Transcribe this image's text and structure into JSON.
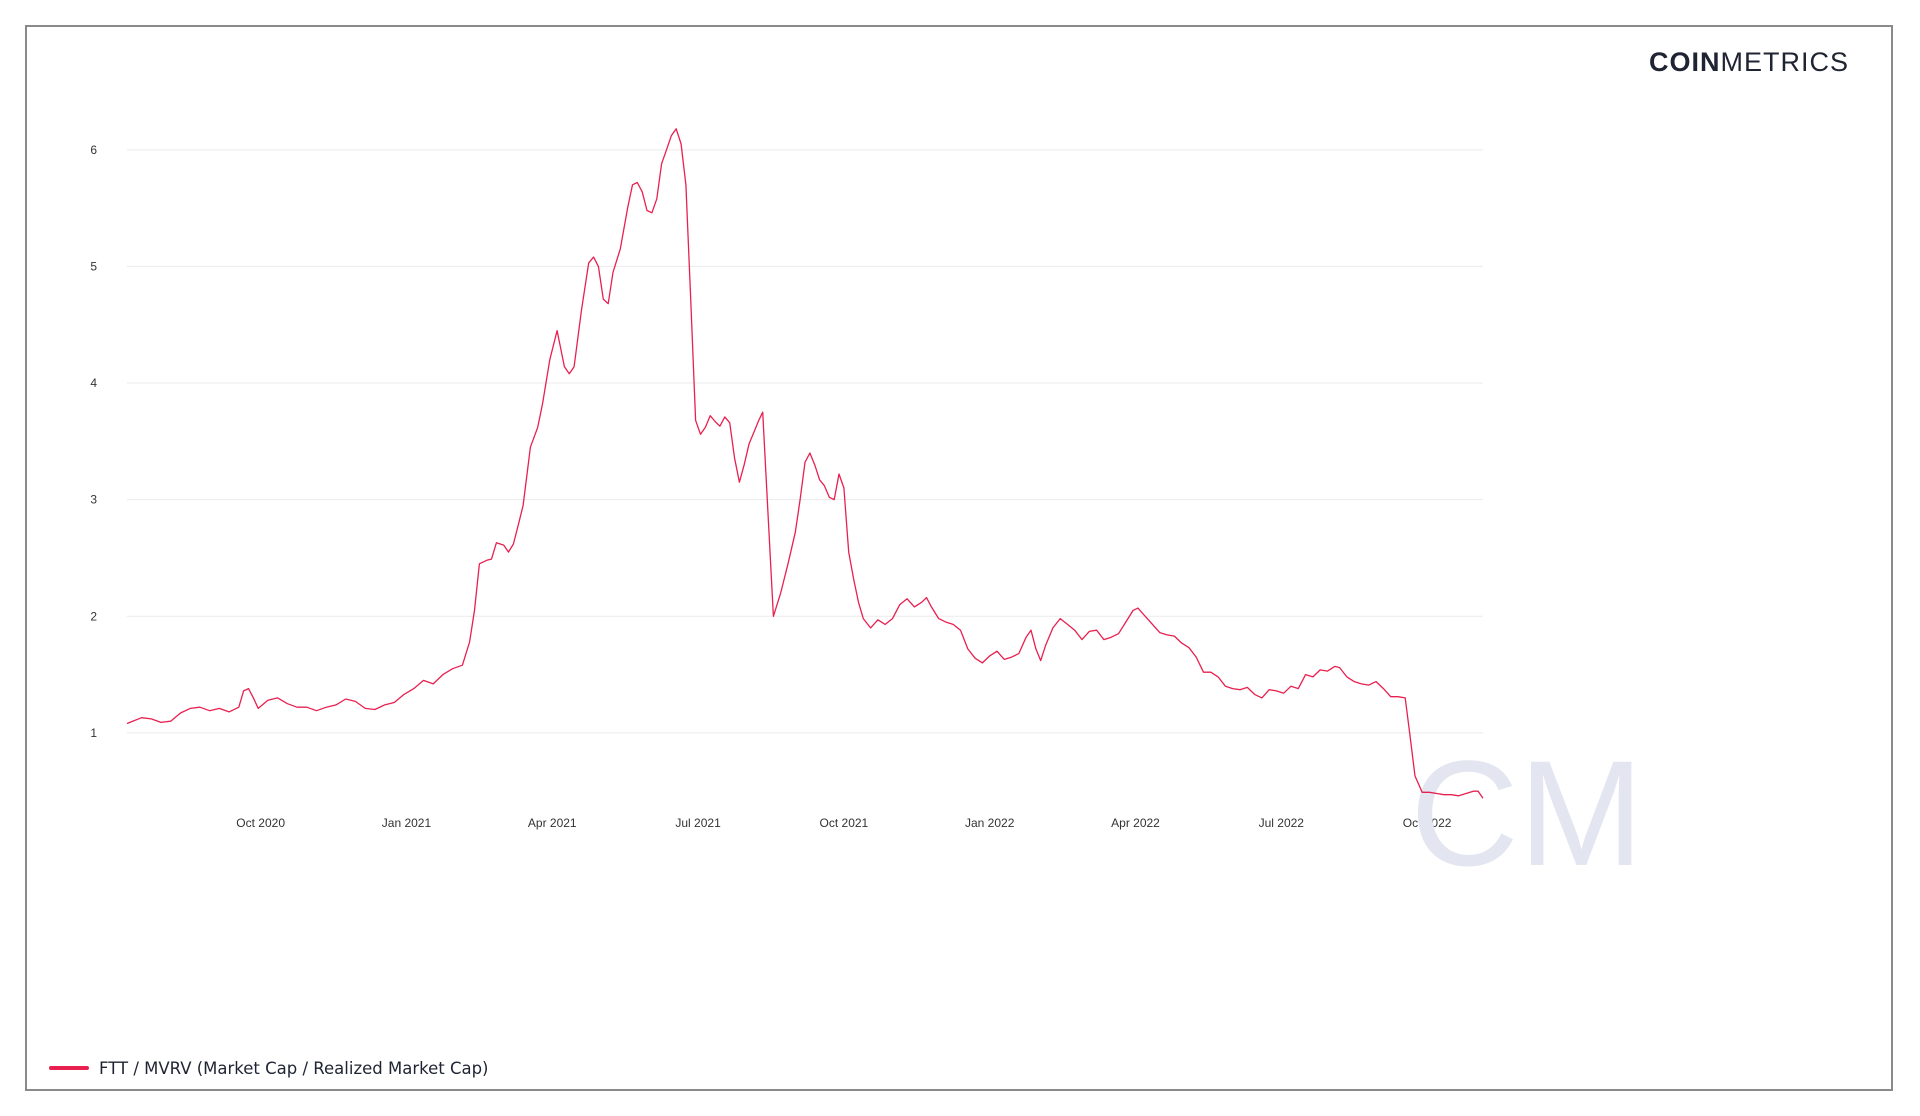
{
  "brand": {
    "part1": "COIN",
    "part2": "METRICS"
  },
  "watermark": "CM",
  "colors": {
    "series": "#e8204f",
    "grid": "#ebebeb",
    "watermark": "#e3e5f0"
  },
  "chart_data": {
    "type": "line",
    "title": "",
    "xlabel": "",
    "ylabel": "",
    "ylim": [
      0.45,
      6.35
    ],
    "yticks": [
      1,
      2,
      3,
      4,
      5,
      6
    ],
    "xticks": [
      {
        "t": 2.75,
        "label": "Oct 2020"
      },
      {
        "t": 5.75,
        "label": "Jan 2021"
      },
      {
        "t": 8.75,
        "label": "Apr 2021"
      },
      {
        "t": 11.75,
        "label": "Jul 2021"
      },
      {
        "t": 14.75,
        "label": "Oct 2021"
      },
      {
        "t": 17.75,
        "label": "Jan 2022"
      },
      {
        "t": 20.75,
        "label": "Apr 2022"
      },
      {
        "t": 23.75,
        "label": "Jul 2022"
      },
      {
        "t": 26.75,
        "label": "Oct 2022"
      }
    ],
    "x_unit_note": "months since 2020-07 (x values map to tick labels above)",
    "grid": true,
    "legend": "bottom-left",
    "series": [
      {
        "name": "FTT / MVRV (Market Cap / Realized Market Cap)",
        "color": "#e8204f",
        "points": [
          [
            0.0,
            1.08
          ],
          [
            0.3,
            1.13
          ],
          [
            0.5,
            1.12
          ],
          [
            0.7,
            1.09
          ],
          [
            0.9,
            1.1
          ],
          [
            1.1,
            1.17
          ],
          [
            1.3,
            1.21
          ],
          [
            1.5,
            1.22
          ],
          [
            1.7,
            1.19
          ],
          [
            1.9,
            1.21
          ],
          [
            2.1,
            1.18
          ],
          [
            2.3,
            1.22
          ],
          [
            2.4,
            1.36
          ],
          [
            2.5,
            1.38
          ],
          [
            2.6,
            1.3
          ],
          [
            2.7,
            1.21
          ],
          [
            2.9,
            1.28
          ],
          [
            3.1,
            1.3
          ],
          [
            3.3,
            1.25
          ],
          [
            3.5,
            1.22
          ],
          [
            3.7,
            1.22
          ],
          [
            3.9,
            1.19
          ],
          [
            4.1,
            1.22
          ],
          [
            4.3,
            1.24
          ],
          [
            4.5,
            1.29
          ],
          [
            4.7,
            1.27
          ],
          [
            4.9,
            1.21
          ],
          [
            5.1,
            1.2
          ],
          [
            5.3,
            1.24
          ],
          [
            5.5,
            1.26
          ],
          [
            5.7,
            1.33
          ],
          [
            5.9,
            1.38
          ],
          [
            6.1,
            1.45
          ],
          [
            6.3,
            1.42
          ],
          [
            6.5,
            1.5
          ],
          [
            6.7,
            1.55
          ],
          [
            6.9,
            1.58
          ],
          [
            7.05,
            1.78
          ],
          [
            7.15,
            2.05
          ],
          [
            7.25,
            2.45
          ],
          [
            7.4,
            2.48
          ],
          [
            7.5,
            2.49
          ],
          [
            7.6,
            2.63
          ],
          [
            7.75,
            2.61
          ],
          [
            7.85,
            2.55
          ],
          [
            7.95,
            2.62
          ],
          [
            8.05,
            2.78
          ],
          [
            8.15,
            2.95
          ],
          [
            8.3,
            3.45
          ],
          [
            8.45,
            3.62
          ],
          [
            8.55,
            3.82
          ],
          [
            8.7,
            4.2
          ],
          [
            8.85,
            4.45
          ],
          [
            9.0,
            4.14
          ],
          [
            9.1,
            4.08
          ],
          [
            9.2,
            4.14
          ],
          [
            9.35,
            4.62
          ],
          [
            9.5,
            5.03
          ],
          [
            9.6,
            5.08
          ],
          [
            9.7,
            5.0
          ],
          [
            9.8,
            4.72
          ],
          [
            9.9,
            4.68
          ],
          [
            10.0,
            4.95
          ],
          [
            10.15,
            5.15
          ],
          [
            10.3,
            5.5
          ],
          [
            10.4,
            5.7
          ],
          [
            10.5,
            5.72
          ],
          [
            10.6,
            5.64
          ],
          [
            10.7,
            5.48
          ],
          [
            10.8,
            5.46
          ],
          [
            10.9,
            5.58
          ],
          [
            11.0,
            5.88
          ],
          [
            11.1,
            6.0
          ],
          [
            11.2,
            6.12
          ],
          [
            11.3,
            6.18
          ],
          [
            11.4,
            6.05
          ],
          [
            11.5,
            5.7
          ],
          [
            11.6,
            4.7
          ],
          [
            11.7,
            3.68
          ],
          [
            11.8,
            3.56
          ],
          [
            11.9,
            3.62
          ],
          [
            12.0,
            3.72
          ],
          [
            12.1,
            3.67
          ],
          [
            12.2,
            3.63
          ],
          [
            12.3,
            3.71
          ],
          [
            12.4,
            3.66
          ],
          [
            12.5,
            3.36
          ],
          [
            12.6,
            3.15
          ],
          [
            12.7,
            3.3
          ],
          [
            12.8,
            3.48
          ],
          [
            12.9,
            3.58
          ],
          [
            13.0,
            3.68
          ],
          [
            13.08,
            3.75
          ],
          [
            13.2,
            2.8
          ],
          [
            13.3,
            2.0
          ],
          [
            13.45,
            2.2
          ],
          [
            13.6,
            2.45
          ],
          [
            13.75,
            2.72
          ],
          [
            13.85,
            3.0
          ],
          [
            13.95,
            3.32
          ],
          [
            14.05,
            3.4
          ],
          [
            14.15,
            3.3
          ],
          [
            14.25,
            3.17
          ],
          [
            14.35,
            3.12
          ],
          [
            14.45,
            3.02
          ],
          [
            14.55,
            3.0
          ],
          [
            14.65,
            3.22
          ],
          [
            14.75,
            3.1
          ],
          [
            14.85,
            2.55
          ],
          [
            14.95,
            2.32
          ],
          [
            15.05,
            2.12
          ],
          [
            15.15,
            1.98
          ],
          [
            15.3,
            1.9
          ],
          [
            15.45,
            1.97
          ],
          [
            15.6,
            1.93
          ],
          [
            15.75,
            1.98
          ],
          [
            15.9,
            2.1
          ],
          [
            16.05,
            2.15
          ],
          [
            16.2,
            2.08
          ],
          [
            16.35,
            2.12
          ],
          [
            16.45,
            2.16
          ],
          [
            16.55,
            2.08
          ],
          [
            16.7,
            1.98
          ],
          [
            16.85,
            1.95
          ],
          [
            17.0,
            1.93
          ],
          [
            17.15,
            1.88
          ],
          [
            17.3,
            1.72
          ],
          [
            17.45,
            1.64
          ],
          [
            17.6,
            1.6
          ],
          [
            17.75,
            1.66
          ],
          [
            17.9,
            1.7
          ],
          [
            18.05,
            1.63
          ],
          [
            18.2,
            1.65
          ],
          [
            18.35,
            1.68
          ],
          [
            18.5,
            1.82
          ],
          [
            18.6,
            1.88
          ],
          [
            18.7,
            1.72
          ],
          [
            18.8,
            1.62
          ],
          [
            18.9,
            1.75
          ],
          [
            19.05,
            1.9
          ],
          [
            19.2,
            1.98
          ],
          [
            19.35,
            1.93
          ],
          [
            19.5,
            1.88
          ],
          [
            19.65,
            1.8
          ],
          [
            19.8,
            1.87
          ],
          [
            19.95,
            1.88
          ],
          [
            20.1,
            1.8
          ],
          [
            20.25,
            1.82
          ],
          [
            20.4,
            1.85
          ],
          [
            20.55,
            1.95
          ],
          [
            20.7,
            2.05
          ],
          [
            20.8,
            2.07
          ],
          [
            20.95,
            2.0
          ],
          [
            21.1,
            1.93
          ],
          [
            21.25,
            1.86
          ],
          [
            21.4,
            1.84
          ],
          [
            21.55,
            1.83
          ],
          [
            21.7,
            1.77
          ],
          [
            21.85,
            1.73
          ],
          [
            22.0,
            1.65
          ],
          [
            22.15,
            1.52
          ],
          [
            22.3,
            1.52
          ],
          [
            22.45,
            1.48
          ],
          [
            22.6,
            1.4
          ],
          [
            22.75,
            1.38
          ],
          [
            22.9,
            1.37
          ],
          [
            23.05,
            1.39
          ],
          [
            23.2,
            1.33
          ],
          [
            23.35,
            1.3
          ],
          [
            23.5,
            1.37
          ],
          [
            23.65,
            1.36
          ],
          [
            23.8,
            1.34
          ],
          [
            23.95,
            1.4
          ],
          [
            24.1,
            1.38
          ],
          [
            24.25,
            1.5
          ],
          [
            24.4,
            1.48
          ],
          [
            24.55,
            1.54
          ],
          [
            24.7,
            1.53
          ],
          [
            24.85,
            1.57
          ],
          [
            24.95,
            1.56
          ],
          [
            25.1,
            1.48
          ],
          [
            25.25,
            1.44
          ],
          [
            25.4,
            1.42
          ],
          [
            25.55,
            1.41
          ],
          [
            25.7,
            1.44
          ],
          [
            25.85,
            1.38
          ],
          [
            26.0,
            1.31
          ],
          [
            26.15,
            1.31
          ],
          [
            26.3,
            1.3
          ],
          [
            26.4,
            0.97
          ],
          [
            26.5,
            0.63
          ],
          [
            26.65,
            0.49
          ],
          [
            26.8,
            0.49
          ],
          [
            26.95,
            0.48
          ],
          [
            27.1,
            0.47
          ],
          [
            27.25,
            0.47
          ],
          [
            27.4,
            0.46
          ],
          [
            27.55,
            0.48
          ],
          [
            27.7,
            0.5
          ],
          [
            27.8,
            0.5
          ],
          [
            27.9,
            0.44
          ]
        ]
      }
    ]
  }
}
